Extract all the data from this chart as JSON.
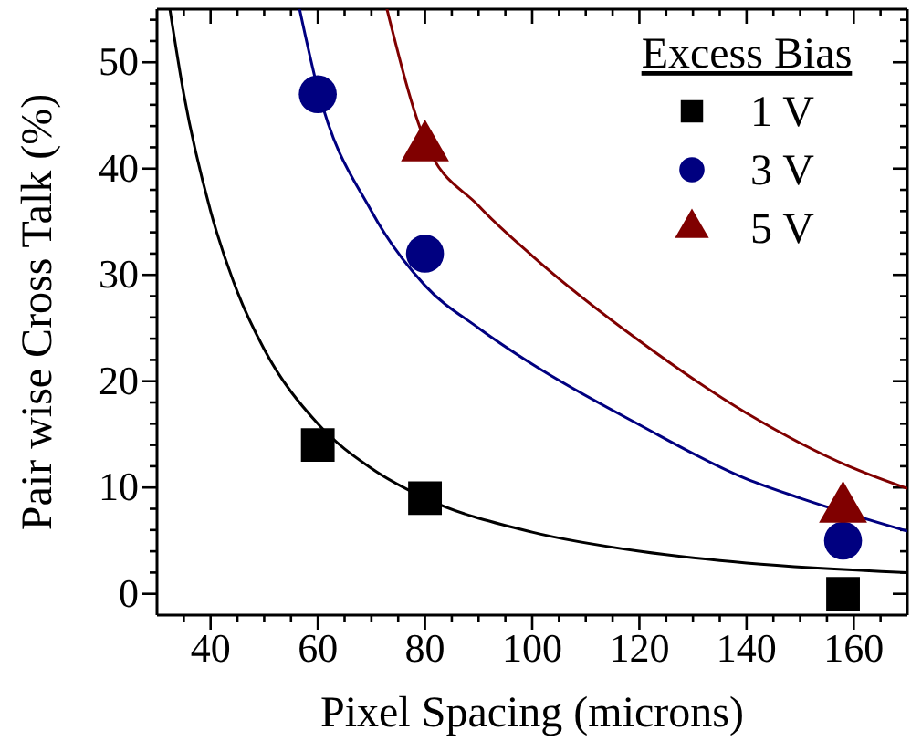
{
  "chart_data": {
    "type": "scatter",
    "xlabel": "Pixel Spacing (microns)",
    "ylabel": "Pair wise Cross Talk (%)",
    "legend_title": "Excess Bias",
    "legend": "top right",
    "grid": false,
    "xlim": [
      30,
      170
    ],
    "ylim": [
      -2,
      55
    ],
    "xticks": [
      {
        "value": 35,
        "label": null
      },
      40,
      {
        "value": 45,
        "label": null
      },
      {
        "value": 50,
        "label": null
      },
      {
        "value": 55,
        "label": null
      },
      60,
      {
        "value": 65,
        "label": null
      },
      {
        "value": 70,
        "label": null
      },
      {
        "value": 75,
        "label": null
      },
      80,
      {
        "value": 85,
        "label": null
      },
      {
        "value": 90,
        "label": null
      },
      {
        "value": 95,
        "label": null
      },
      100,
      {
        "value": 105,
        "label": null
      },
      {
        "value": 110,
        "label": null
      },
      {
        "value": 115,
        "label": null
      },
      120,
      {
        "value": 125,
        "label": null
      },
      {
        "value": 130,
        "label": null
      },
      {
        "value": 135,
        "label": null
      },
      140,
      {
        "value": 145,
        "label": null
      },
      {
        "value": 150,
        "label": null
      },
      {
        "value": 155,
        "label": null
      },
      160,
      {
        "value": 165,
        "label": null
      }
    ],
    "yticks": [
      0,
      {
        "value": 2,
        "label": null
      },
      {
        "value": 4,
        "label": null
      },
      {
        "value": 6,
        "label": null
      },
      {
        "value": 8,
        "label": null
      },
      10,
      {
        "value": 12,
        "label": null
      },
      {
        "value": 14,
        "label": null
      },
      {
        "value": 16,
        "label": null
      },
      {
        "value": 18,
        "label": null
      },
      20,
      {
        "value": 22,
        "label": null
      },
      {
        "value": 24,
        "label": null
      },
      {
        "value": 26,
        "label": null
      },
      {
        "value": 28,
        "label": null
      },
      30,
      {
        "value": 32,
        "label": null
      },
      {
        "value": 34,
        "label": null
      },
      {
        "value": 36,
        "label": null
      },
      {
        "value": 38,
        "label": null
      },
      40,
      {
        "value": 42,
        "label": null
      },
      {
        "value": 44,
        "label": null
      },
      {
        "value": 46,
        "label": null
      },
      {
        "value": 48,
        "label": null
      },
      50,
      {
        "value": 52,
        "label": null
      },
      {
        "value": 54,
        "label": null
      }
    ],
    "series": [
      {
        "type": "line",
        "color": "#000000",
        "marker": "none",
        "x": [
          32.4,
          35,
          40,
          45,
          50,
          60,
          70,
          80,
          100,
          120,
          140,
          170
        ],
        "values": [
          55,
          47,
          36,
          28.4,
          23,
          16,
          11.8,
          9,
          5.8,
          4,
          2.9,
          2
        ]
      },
      {
        "type": "line",
        "color": "#000080",
        "marker": "none",
        "x": [
          56.6,
          60,
          70,
          80,
          90,
          100,
          120,
          140,
          150,
          170
        ],
        "values": [
          55,
          47.5,
          36,
          29,
          25,
          21.6,
          15.9,
          10.8,
          9,
          5.9
        ]
      },
      {
        "type": "line",
        "color": "#800000",
        "marker": "none",
        "x": [
          72.9,
          80,
          90,
          100,
          120,
          140,
          160,
          170
        ],
        "values": [
          55,
          42.6,
          36.5,
          31.8,
          23.8,
          17,
          11.8,
          9.9
        ]
      },
      {
        "type": "scatter",
        "name": "1 V",
        "color": "#000000",
        "marker": "square",
        "x": [
          60,
          80,
          158
        ],
        "values": [
          14,
          9,
          0
        ]
      },
      {
        "type": "scatter",
        "name": "3 V",
        "color": "#000080",
        "marker": "circle",
        "x": [
          60,
          80,
          158
        ],
        "values": [
          47,
          32,
          5
        ]
      },
      {
        "type": "scatter",
        "name": "5 V",
        "color": "#800000",
        "marker": "triangle",
        "x": [
          80,
          158
        ],
        "values": [
          42,
          8
        ]
      }
    ]
  }
}
